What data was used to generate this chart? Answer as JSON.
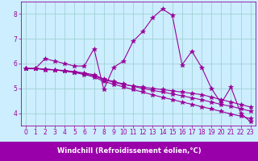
{
  "x_values": [
    0,
    1,
    2,
    3,
    4,
    5,
    6,
    7,
    8,
    9,
    10,
    11,
    12,
    13,
    14,
    15,
    16,
    17,
    18,
    19,
    20,
    21,
    22,
    23
  ],
  "line1": [
    5.8,
    5.8,
    6.2,
    6.1,
    6.0,
    5.9,
    5.9,
    6.6,
    4.95,
    5.85,
    6.1,
    6.9,
    7.3,
    7.85,
    8.2,
    7.95,
    5.95,
    6.5,
    5.85,
    5.0,
    4.4,
    5.05,
    4.0,
    3.65
  ],
  "line2": [
    5.8,
    5.8,
    5.75,
    5.75,
    5.7,
    5.65,
    5.6,
    5.5,
    5.35,
    5.25,
    5.15,
    5.1,
    5.05,
    5.0,
    4.95,
    4.9,
    4.85,
    4.8,
    4.75,
    4.65,
    4.55,
    4.45,
    4.35,
    4.25
  ],
  "line3": [
    5.8,
    5.8,
    5.78,
    5.75,
    5.72,
    5.68,
    5.62,
    5.55,
    5.38,
    5.28,
    5.18,
    5.08,
    5.0,
    4.92,
    4.85,
    4.78,
    4.7,
    4.62,
    4.54,
    4.45,
    4.35,
    4.28,
    4.18,
    4.08
  ],
  "line4": [
    5.8,
    5.8,
    5.78,
    5.74,
    5.7,
    5.64,
    5.56,
    5.46,
    5.28,
    5.17,
    5.06,
    4.95,
    4.85,
    4.74,
    4.64,
    4.55,
    4.45,
    4.36,
    4.26,
    4.17,
    4.07,
    3.97,
    3.88,
    3.78
  ],
  "color": "#990099",
  "bg_color": "#cceeff",
  "grid_color": "#99cccc",
  "axis_bg": "#9900aa",
  "xlabel": "Windchill (Refroidissement éolien,°C)",
  "xlim": [
    -0.5,
    23.5
  ],
  "ylim": [
    3.5,
    8.5
  ],
  "yticks": [
    4,
    5,
    6,
    7,
    8
  ],
  "xticks": [
    0,
    1,
    2,
    3,
    4,
    5,
    6,
    7,
    8,
    9,
    10,
    11,
    12,
    13,
    14,
    15,
    16,
    17,
    18,
    19,
    20,
    21,
    22,
    23
  ],
  "marker": "*",
  "markersize": 4,
  "linewidth": 0.8,
  "xlabel_fontsize": 6,
  "tick_fontsize": 5.5,
  "tick_color": "#990099",
  "spine_color": "#990099",
  "xlabel_color": "#ffffff"
}
